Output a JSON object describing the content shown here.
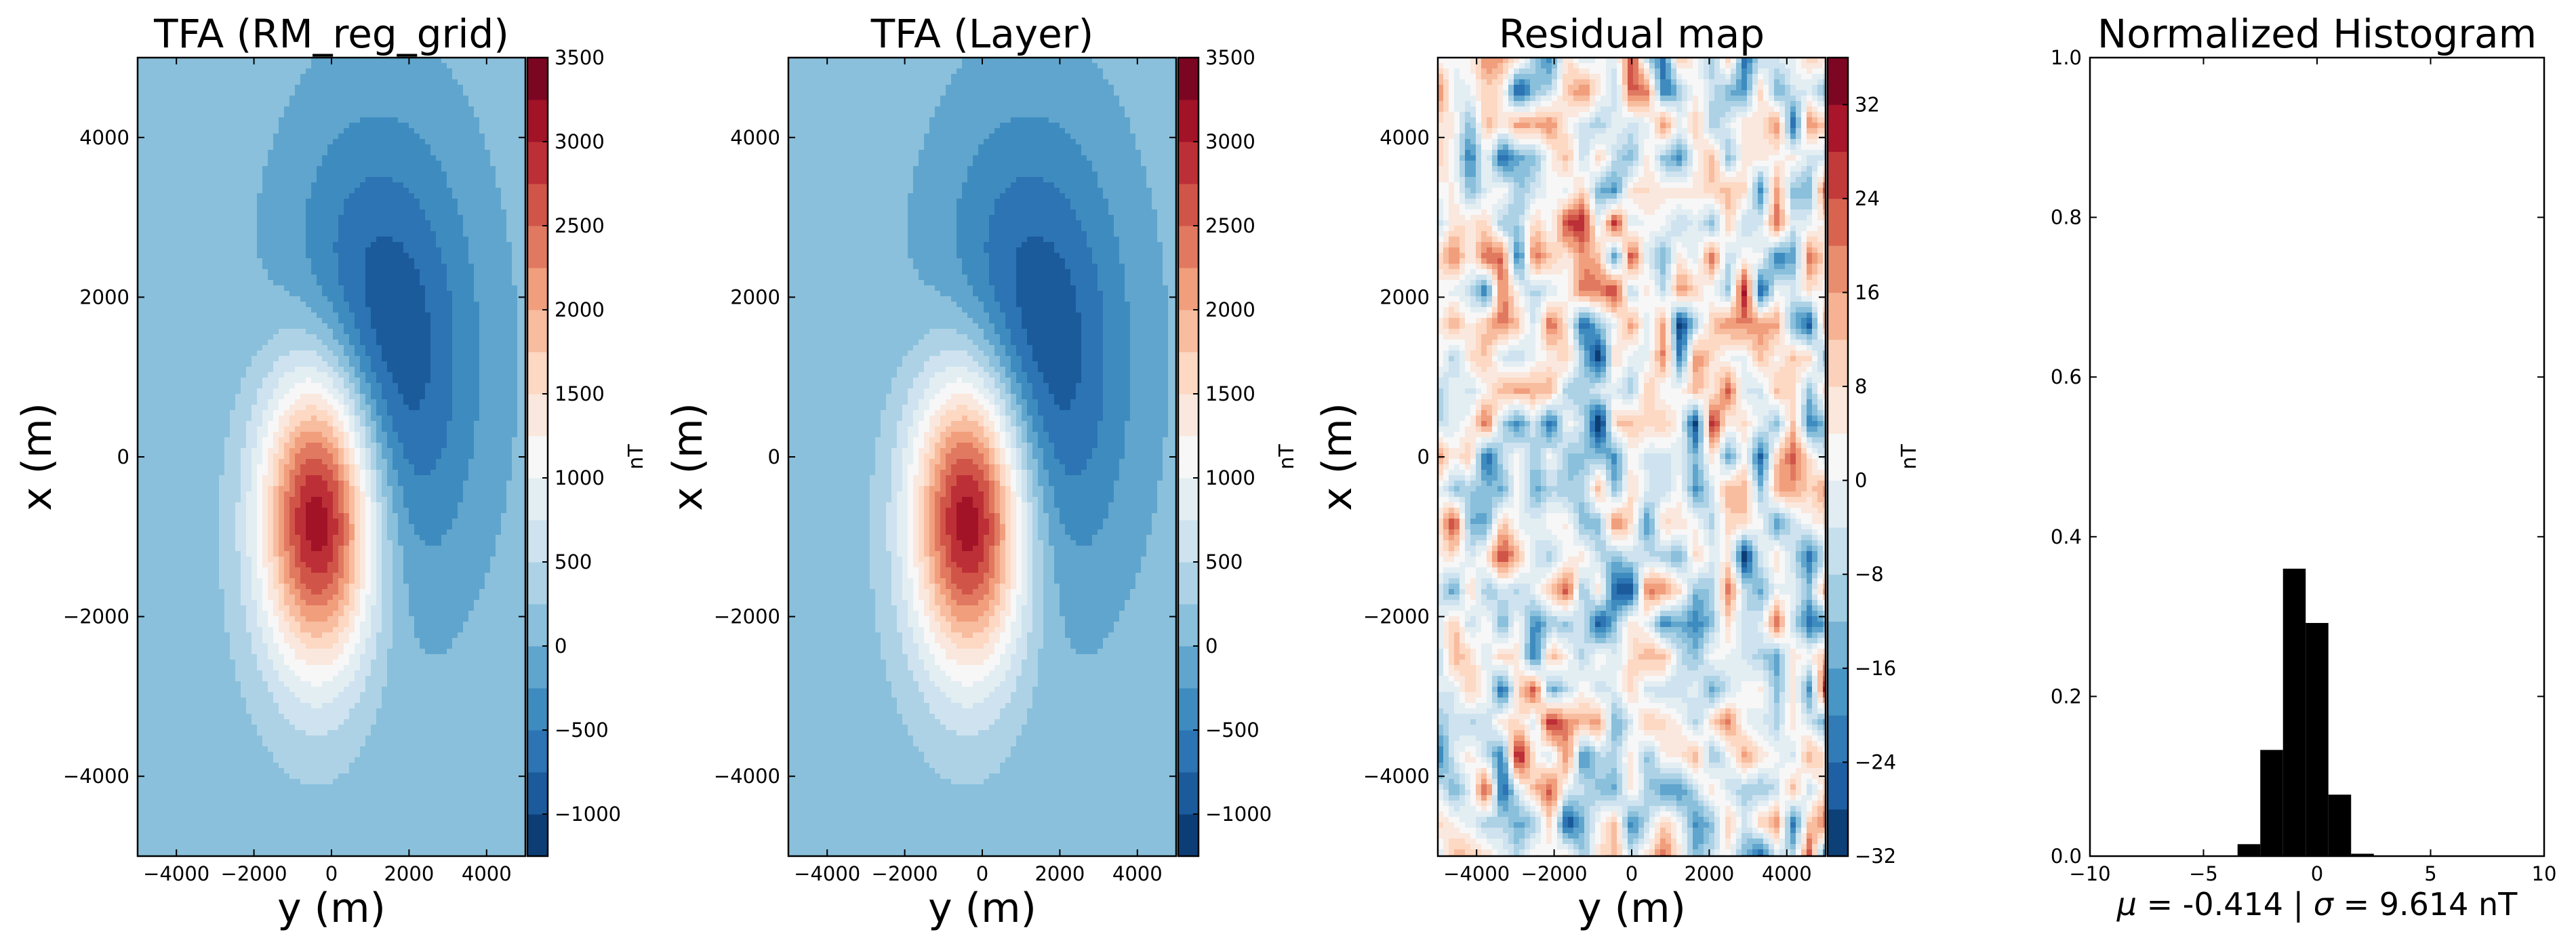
{
  "chart_data": [
    {
      "type": "contour",
      "title": "TFA (RM_reg_grid)",
      "xlabel": "y (m)",
      "ylabel": "x (m)",
      "xlim": [
        -5000,
        5000
      ],
      "ylim": [
        -5000,
        5000
      ],
      "x_ticks": [
        "−4000",
        "−2000",
        "0",
        "2000",
        "4000"
      ],
      "y_ticks": [
        "−4000",
        "−2000",
        "0",
        "2000",
        "4000"
      ],
      "colorbar": {
        "label": "nT",
        "range": [
          -1250,
          3500
        ],
        "ticks": [
          "−1000",
          "−500",
          "0",
          "500",
          "1000",
          "1500",
          "2000",
          "2500",
          "3000",
          "3500"
        ],
        "colormap": "RdBu_r"
      },
      "field": {
        "positive_peak": {
          "y": -300,
          "x": -700,
          "value": 3500,
          "sigma_y": 1050,
          "sigma_x": 1350
        },
        "negative_trough": {
          "y": 1200,
          "x": 1200,
          "value": -1250,
          "sigma_y": 1700,
          "sigma_x": 2000
        }
      }
    },
    {
      "type": "contour",
      "title": "TFA (Layer)",
      "xlabel": "y (m)",
      "ylabel": "x (m)",
      "xlim": [
        -5000,
        5000
      ],
      "ylim": [
        -5000,
        5000
      ],
      "x_ticks": [
        "−4000",
        "−2000",
        "0",
        "2000",
        "4000"
      ],
      "y_ticks": [
        "−4000",
        "−2000",
        "0",
        "2000",
        "4000"
      ],
      "colorbar": {
        "label": "nT",
        "range": [
          -1250,
          3500
        ],
        "ticks": [
          "−1000",
          "−500",
          "0",
          "500",
          "1000",
          "1500",
          "2000",
          "2500",
          "3000",
          "3500"
        ],
        "colormap": "RdBu_r"
      },
      "field": {
        "positive_peak": {
          "y": -300,
          "x": -700,
          "value": 3500,
          "sigma_y": 1050,
          "sigma_x": 1350
        },
        "negative_trough": {
          "y": 1200,
          "x": 1200,
          "value": -1250,
          "sigma_y": 1700,
          "sigma_x": 2000
        }
      }
    },
    {
      "type": "contour",
      "title": "Residual map",
      "xlabel": "y (m)",
      "ylabel": "x (m)",
      "xlim": [
        -5000,
        5000
      ],
      "ylim": [
        -5000,
        5000
      ],
      "x_ticks": [
        "−4000",
        "−2000",
        "0",
        "2000",
        "4000"
      ],
      "y_ticks": [
        "−4000",
        "−2000",
        "0",
        "2000",
        "4000"
      ],
      "colorbar": {
        "label": "nT",
        "range": [
          -32,
          36
        ],
        "ticks": [
          "−32",
          "−24",
          "−16",
          "−8",
          "0",
          "8",
          "16",
          "24",
          "32"
        ],
        "colormap": "RdBu_r"
      },
      "field": {
        "kind": "random noise",
        "grid": [
          25,
          25
        ]
      }
    },
    {
      "type": "bar",
      "title": "Normalized Histogram",
      "xlabel_parts": {
        "mu_symbol": "μ",
        "mu_text": " = -0.414 | ",
        "sigma_symbol": "σ",
        "sigma_text": " = 9.614 nT"
      },
      "xlim": [
        -10,
        10
      ],
      "ylim": [
        0,
        1
      ],
      "x_ticks": [
        "−10",
        "−5",
        "0",
        "5",
        "10"
      ],
      "y_ticks": [
        "0.0",
        "0.2",
        "0.4",
        "0.6",
        "0.8",
        "1.0"
      ],
      "bins": [
        {
          "x0": -3.5,
          "x1": -2.5,
          "h": 0.015
        },
        {
          "x0": -2.5,
          "x1": -1.5,
          "h": 0.133
        },
        {
          "x0": -1.5,
          "x1": -0.5,
          "h": 0.36
        },
        {
          "x0": -0.5,
          "x1": 0.5,
          "h": 0.292
        },
        {
          "x0": 0.5,
          "x1": 1.5,
          "h": 0.077
        },
        {
          "x0": 1.5,
          "x1": 2.5,
          "h": 0.003
        }
      ],
      "bar_color": "#000000"
    }
  ]
}
